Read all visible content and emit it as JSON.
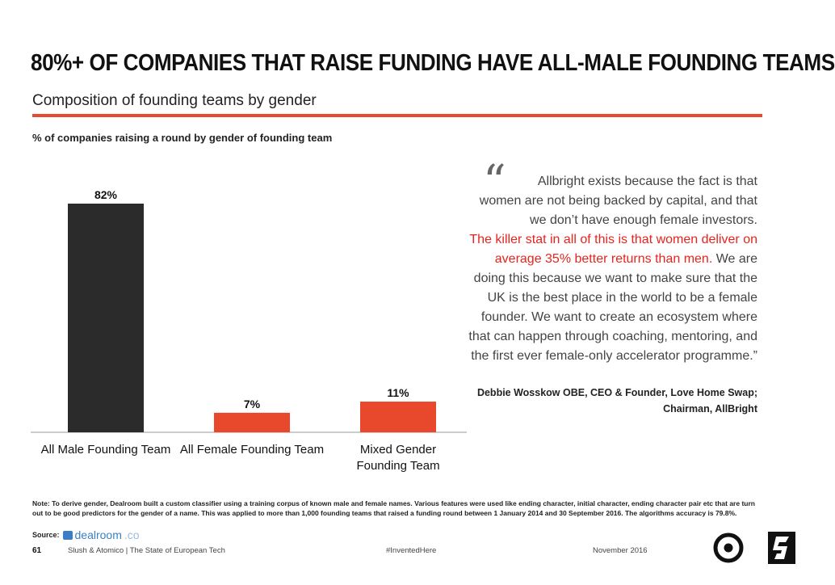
{
  "header": {
    "title": "80%+ OF COMPANIES THAT RAISE FUNDING HAVE ALL-MALE FOUNDING TEAMS",
    "subtitle": "Composition of founding teams by gender"
  },
  "colors": {
    "accent": "#e8492d",
    "bar_male": "#2b2b2b",
    "bar_other": "#e8492d",
    "highlight": "#e8231d"
  },
  "chart_data": {
    "type": "bar",
    "title": "% of companies raising a round by gender of founding team",
    "categories": [
      "All Male Founding Team",
      "All Female Founding Team",
      "Mixed Gender Founding Team"
    ],
    "category_lines": [
      [
        "All Male Founding Team"
      ],
      [
        "All Female Founding Team"
      ],
      [
        "Mixed Gender",
        "Founding Team"
      ]
    ],
    "values": [
      82,
      7,
      11
    ],
    "value_labels": [
      "82%",
      "7%",
      "11%"
    ],
    "unit": "%",
    "ylim": [
      0,
      100
    ],
    "grid": false
  },
  "quote": {
    "open_mark": "“",
    "text_1": "Allbright exists because the fact is that women are not being backed by capital, and that we don’t have enough female investors.",
    "highlight": "The killer stat in all of this is that women deliver on average 35% better returns than men.",
    "text_2": "We are doing this because we want to make sure that the UK is the best place in the world to be a female founder. We want to create an ecosystem where that can happen through coaching, mentoring, and the first ever female-only accelerator programme.”",
    "attribution_1": "Debbie Wosskow OBE, CEO & Founder, Love Home Swap;",
    "attribution_2": "Chairman, AllBright"
  },
  "note": "Note: To derive gender, Dealroom built a custom classifier using a training corpus of known male and female names. Various features were used like ending character, initial character, ending character pair etc that are turn out to be good predictors for the gender of a name. This was applied to more than 1,000 founding teams that raised a funding round between 1 January 2014 and 30 September 2016. The algorithms accuracy is 79.8%.",
  "source": {
    "label": "Source:",
    "logo_main": "dealroom",
    "logo_suffix": ".co"
  },
  "footer": {
    "page_number": "61",
    "brand": "Slush & Atomico  |  The State of European Tech",
    "hashtag": "#InventedHere",
    "date": "November 2016",
    "logo_right_1": "atomico-logo",
    "logo_right_2": "slush-logo"
  }
}
